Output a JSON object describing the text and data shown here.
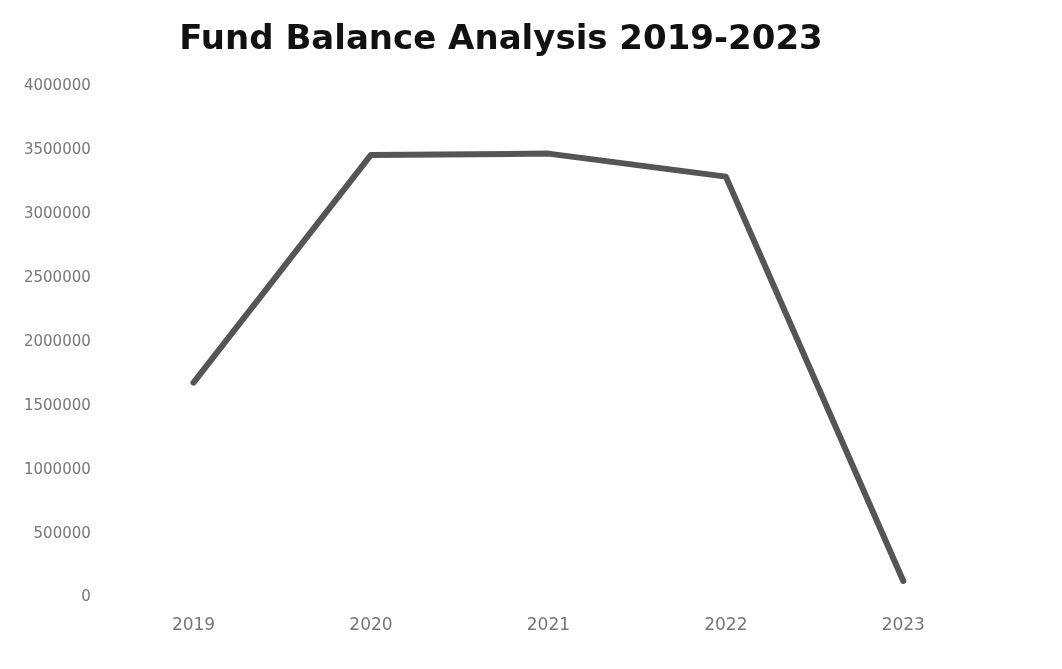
{
  "chart_data": {
    "type": "line",
    "title": "Fund Balance Analysis 2019-2023",
    "categories": [
      "2019",
      "2020",
      "2021",
      "2022",
      "2023"
    ],
    "series": [
      {
        "color": "#555555",
        "values": [
          1680000,
          3460000,
          3470000,
          3290000,
          130000
        ]
      }
    ],
    "ylim": [
      0,
      4000000
    ],
    "yticks": [
      0,
      500000,
      1000000,
      1500000,
      2000000,
      2500000,
      3000000,
      3500000,
      4000000
    ],
    "grid": false,
    "legend": false,
    "marker": "none",
    "line_style": "solid"
  }
}
